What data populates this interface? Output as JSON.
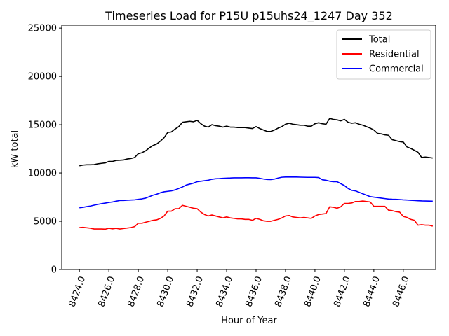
{
  "chart_data": {
    "type": "line",
    "title": "Timeseries Load for P15U p15uhs24_1247  Day 352",
    "xlabel": "Hour of Year",
    "ylabel": "kW total",
    "xlim": [
      8422.8,
      8448.2
    ],
    "ylim": [
      0,
      25300
    ],
    "x_ticks": [
      8424,
      8426,
      8428,
      8430,
      8432,
      8434,
      8436,
      8438,
      8440,
      8442,
      8444,
      8446
    ],
    "x_tick_labels": [
      "8424.0",
      "8426.0",
      "8428.0",
      "8430.0",
      "8432.0",
      "8434.0",
      "8436.0",
      "8438.0",
      "8440.0",
      "8442.0",
      "8444.0",
      "8446.0"
    ],
    "y_ticks": [
      0,
      5000,
      10000,
      15000,
      20000,
      25000
    ],
    "y_tick_labels": [
      "0",
      "5000",
      "10000",
      "15000",
      "20000",
      "25000"
    ],
    "legend_position": "top-right",
    "x_start": 8424,
    "x_step": 0.25,
    "series": [
      {
        "name": "Total",
        "color": "#000000",
        "values": [
          10750,
          10820,
          10850,
          10850,
          10870,
          10950,
          11000,
          11050,
          11200,
          11200,
          11300,
          11320,
          11350,
          11450,
          11500,
          11600,
          12000,
          12100,
          12300,
          12600,
          12850,
          13000,
          13300,
          13650,
          14200,
          14250,
          14550,
          14800,
          15250,
          15300,
          15350,
          15300,
          15450,
          15100,
          14850,
          14750,
          15000,
          14900,
          14850,
          14750,
          14850,
          14750,
          14750,
          14700,
          14700,
          14700,
          14650,
          14600,
          14800,
          14600,
          14450,
          14300,
          14300,
          14450,
          14650,
          14800,
          15050,
          15150,
          15050,
          15000,
          14950,
          14950,
          14850,
          14850,
          15100,
          15200,
          15100,
          15050,
          15650,
          15550,
          15500,
          15400,
          15550,
          15250,
          15150,
          15200,
          15050,
          14950,
          14800,
          14650,
          14450,
          14100,
          14050,
          13950,
          13900,
          13450,
          13350,
          13250,
          13200,
          12700,
          12550,
          12350,
          12150,
          11600,
          11650,
          11600,
          11550
        ]
      },
      {
        "name": "Residential",
        "color": "#ff0000",
        "values": [
          4350,
          4370,
          4330,
          4280,
          4200,
          4200,
          4200,
          4180,
          4280,
          4220,
          4270,
          4200,
          4250,
          4300,
          4350,
          4450,
          4800,
          4800,
          4900,
          5000,
          5100,
          5150,
          5300,
          5550,
          6050,
          6050,
          6300,
          6300,
          6650,
          6550,
          6450,
          6350,
          6300,
          5950,
          5700,
          5550,
          5650,
          5550,
          5450,
          5350,
          5450,
          5350,
          5300,
          5250,
          5250,
          5200,
          5200,
          5100,
          5300,
          5200,
          5050,
          5000,
          5000,
          5100,
          5200,
          5350,
          5550,
          5600,
          5450,
          5400,
          5350,
          5400,
          5350,
          5300,
          5550,
          5700,
          5750,
          5800,
          6500,
          6450,
          6350,
          6500,
          6850,
          6850,
          6900,
          7050,
          7050,
          7100,
          7050,
          7000,
          6550,
          6550,
          6550,
          6550,
          6150,
          6100,
          6000,
          5950,
          5500,
          5400,
          5200,
          5100,
          4600,
          4650,
          4600,
          4600,
          4500
        ]
      },
      {
        "name": "Commercial",
        "color": "#0000ff",
        "values": [
          6400,
          6450,
          6520,
          6580,
          6670,
          6750,
          6820,
          6880,
          6950,
          7000,
          7080,
          7150,
          7150,
          7180,
          7200,
          7220,
          7270,
          7320,
          7400,
          7550,
          7700,
          7800,
          7950,
          8050,
          8100,
          8150,
          8250,
          8400,
          8550,
          8750,
          8850,
          8950,
          9100,
          9150,
          9200,
          9250,
          9350,
          9400,
          9420,
          9450,
          9470,
          9480,
          9500,
          9500,
          9500,
          9510,
          9510,
          9500,
          9500,
          9450,
          9380,
          9330,
          9320,
          9370,
          9480,
          9560,
          9580,
          9580,
          9580,
          9580,
          9570,
          9560,
          9550,
          9550,
          9550,
          9530,
          9300,
          9250,
          9150,
          9100,
          9100,
          8900,
          8700,
          8400,
          8200,
          8150,
          8000,
          7850,
          7700,
          7550,
          7500,
          7450,
          7400,
          7350,
          7300,
          7280,
          7270,
          7250,
          7220,
          7200,
          7170,
          7150,
          7130,
          7110,
          7100,
          7090,
          7080
        ]
      }
    ]
  }
}
